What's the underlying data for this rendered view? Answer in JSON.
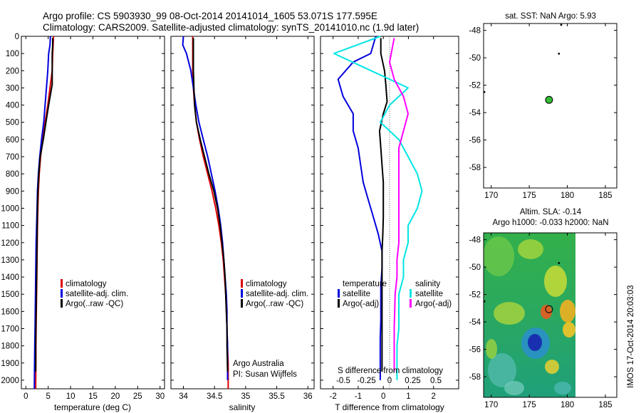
{
  "figure": {
    "title_line1": "Argo profile: CS 5903930_99 08-Oct-2014 20141014_1605 53.071S 177.595E",
    "title_line2": "Climatology: CARS2009. Satellite-adjusted climatology: synTS_20141010.nc (1.9d later)",
    "credits_line1": "Argo Australia",
    "credits_line2": "PI: Susan Wijffels",
    "vertical_stamp": "IMOS 17-Oct-2014 20:03:03"
  },
  "colors": {
    "climatology": "#dd0000",
    "satellite": "#0000dd",
    "argo": "#000000",
    "sst_satellite": "#00e5e5",
    "sal_satellite": "#ff00ff",
    "float_marker": "#33bb33"
  },
  "chart_data": [
    {
      "id": "temperature",
      "type": "line",
      "xlabel": "temperature (deg C)",
      "ylabel": "",
      "xlim": [
        -1,
        31
      ],
      "ylim": [
        2050,
        0
      ],
      "xticks": [
        0,
        5,
        10,
        15,
        20,
        25,
        30
      ],
      "yticks": [
        0,
        100,
        200,
        300,
        400,
        500,
        600,
        700,
        800,
        900,
        1000,
        1100,
        1200,
        1300,
        1400,
        1500,
        1600,
        1700,
        1800,
        1900,
        2000
      ],
      "legend": [
        "climatology",
        "satellite-adj. clim.",
        "Argo(..raw -QC)"
      ],
      "legend_position": "bottom-right",
      "series": [
        {
          "name": "climatology",
          "color_key": "climatology",
          "x": [
            6.2,
            6.1,
            6.0,
            5.9,
            5.4,
            4.9,
            4.3,
            3.8,
            3.3,
            3.0,
            2.8,
            2.7,
            2.6,
            2.55,
            2.5,
            2.45,
            2.4,
            2.35,
            2.3,
            2.25,
            2.25,
            2.2
          ],
          "y": [
            0,
            50,
            100,
            200,
            300,
            400,
            500,
            600,
            700,
            800,
            900,
            1000,
            1100,
            1200,
            1300,
            1400,
            1500,
            1600,
            1700,
            1800,
            1900,
            2050
          ]
        },
        {
          "name": "satellite-adj. clim.",
          "color_key": "satellite",
          "x": [
            5.5,
            5.4,
            5.1,
            4.9,
            4.6,
            4.3,
            4.0,
            3.5,
            3.1,
            2.8,
            2.6,
            2.5,
            2.4,
            2.3,
            2.25,
            2.2,
            2.15,
            2.1,
            2.05,
            2.0,
            1.95,
            1.9
          ],
          "y": [
            0,
            50,
            100,
            200,
            300,
            400,
            500,
            600,
            700,
            800,
            900,
            1000,
            1100,
            1200,
            1300,
            1400,
            1500,
            1600,
            1700,
            1800,
            1900,
            2050
          ]
        },
        {
          "name": "Argo(..raw -QC)",
          "color_key": "argo",
          "x": [
            6.0,
            6.0,
            5.9,
            5.9,
            5.9,
            5.1,
            4.5,
            3.9,
            3.2,
            2.9,
            2.7,
            2.6,
            2.55,
            2.5,
            2.45,
            2.4,
            2.35,
            2.3,
            2.25,
            2.2,
            2.2
          ],
          "y": [
            10,
            50,
            100,
            200,
            280,
            400,
            500,
            600,
            700,
            800,
            900,
            1000,
            1100,
            1200,
            1300,
            1400,
            1500,
            1600,
            1700,
            1800,
            1950
          ]
        }
      ]
    },
    {
      "id": "salinity",
      "type": "line",
      "xlabel": "salinity",
      "ylabel": "",
      "xlim": [
        33.8,
        36.1
      ],
      "ylim": [
        2050,
        0
      ],
      "xticks": [
        34,
        34.5,
        35,
        35.5,
        36
      ],
      "xtick_labels": [
        "34",
        "34.5",
        "35",
        "35.5",
        "36"
      ],
      "legend": [
        "climatology",
        "satellite-adj. clim.",
        "Argo(..raw -QC)"
      ],
      "legend_position": "bottom-right",
      "series": [
        {
          "name": "climatology",
          "color_key": "climatology",
          "x": [
            34.15,
            34.15,
            34.15,
            34.16,
            34.18,
            34.21,
            34.26,
            34.32,
            34.39,
            34.46,
            34.52,
            34.57,
            34.61,
            34.64,
            34.66,
            34.68,
            34.69,
            34.7,
            34.71,
            34.72,
            34.72
          ],
          "y": [
            0,
            100,
            200,
            300,
            400,
            500,
            600,
            700,
            800,
            900,
            1000,
            1100,
            1200,
            1300,
            1400,
            1500,
            1600,
            1700,
            1800,
            1900,
            2050
          ]
        },
        {
          "name": "satellite-adj. clim.",
          "color_key": "satellite",
          "x": [
            34.0,
            33.99,
            34.05,
            34.12,
            34.16,
            34.2,
            34.25,
            34.32,
            34.39,
            34.45,
            34.51,
            34.56,
            34.6,
            34.63,
            34.65,
            34.67,
            34.69,
            34.7,
            34.7,
            34.71,
            34.71
          ],
          "y": [
            0,
            50,
            100,
            200,
            300,
            400,
            500,
            600,
            700,
            800,
            900,
            1000,
            1100,
            1200,
            1300,
            1400,
            1500,
            1600,
            1700,
            1800,
            2000
          ]
        },
        {
          "name": "Argo(..raw -QC)",
          "color_key": "argo",
          "x": [
            34.16,
            34.16,
            34.16,
            34.17,
            34.18,
            34.21,
            34.27,
            34.34,
            34.41,
            34.49,
            34.55,
            34.59,
            34.62,
            34.65,
            34.67,
            34.68,
            34.69,
            34.7,
            34.7,
            34.71
          ],
          "y": [
            10,
            100,
            200,
            300,
            400,
            500,
            600,
            700,
            800,
            900,
            1000,
            1100,
            1200,
            1300,
            1400,
            1500,
            1600,
            1700,
            1800,
            1950
          ]
        }
      ]
    },
    {
      "id": "differences",
      "type": "line",
      "xlabel": "T difference from climatology",
      "xlabel_top": "S difference from climatology",
      "ylabel": "",
      "xlim": [
        -2.5,
        3.0
      ],
      "ylim": [
        2050,
        0
      ],
      "xticks": [
        -2,
        -1,
        0,
        1,
        2
      ],
      "xticks_salinity": [
        -0.5,
        -0.25,
        0,
        0.25,
        0.5
      ],
      "xticks_salinity_labels": [
        "-0.5",
        "-0.25",
        "0",
        "0.25",
        "0.5"
      ],
      "legend_temperature_title": "temperature",
      "legend_salinity_title": "salinity",
      "legend_temperature": [
        "satellite",
        "Argo(-adj)"
      ],
      "legend_salinity": [
        "satellite",
        "Argo(-adj)"
      ],
      "legend_position": "bottom",
      "series": [
        {
          "name": "satellite",
          "color_key": "satellite",
          "group": "temperature",
          "x": [
            -0.3,
            -0.5,
            -1.2,
            -1.8,
            -1.6,
            -1.2,
            -1.2,
            -1.0,
            -0.9,
            -0.8,
            -0.6,
            -0.4,
            -0.2,
            -0.05,
            -0.05,
            -0.1,
            -0.1,
            -0.1,
            -0.12,
            -0.12,
            -0.12
          ],
          "y": [
            0,
            100,
            150,
            250,
            350,
            450,
            550,
            650,
            750,
            850,
            950,
            1050,
            1150,
            1250,
            1350,
            1450,
            1550,
            1650,
            1750,
            1850,
            2000
          ]
        },
        {
          "name": "Argo(-adj)",
          "color_key": "argo",
          "group": "temperature",
          "x": [
            -0.1,
            -0.1,
            0.05,
            0.1,
            0.15,
            0.0,
            -0.15,
            -0.1,
            -0.05,
            0.0,
            0.0,
            0.0,
            -0.02,
            -0.05,
            -0.05,
            -0.05,
            -0.05,
            -0.05,
            -0.05,
            -0.05
          ],
          "y": [
            10,
            100,
            200,
            280,
            380,
            450,
            550,
            650,
            750,
            850,
            950,
            1050,
            1150,
            1250,
            1350,
            1450,
            1550,
            1650,
            1750,
            1950
          ]
        },
        {
          "name": "satellite",
          "color_key": "sst_satellite",
          "group": "salinity",
          "x": [
            -0.1,
            -0.6,
            -0.2,
            0.2,
            0.0,
            -0.1,
            0.1,
            0.2,
            0.3,
            0.35,
            0.3,
            0.2,
            0.2,
            0.15,
            0.15,
            0.1,
            0.1,
            0.1,
            0.08,
            0.08
          ],
          "y": [
            0,
            100,
            200,
            300,
            400,
            500,
            600,
            700,
            800,
            900,
            1000,
            1100,
            1200,
            1300,
            1400,
            1500,
            1600,
            1700,
            1800,
            2000
          ]
        },
        {
          "name": "Argo(-adj)",
          "color_key": "sal_satellite",
          "group": "salinity",
          "x": [
            0.05,
            0.0,
            0.05,
            0.15,
            0.2,
            0.15,
            0.1,
            0.1,
            0.1,
            0.1,
            0.1,
            0.1,
            0.08,
            0.08,
            0.06,
            0.05,
            0.05
          ],
          "y": [
            10,
            150,
            250,
            350,
            450,
            550,
            650,
            750,
            850,
            1000,
            1100,
            1200,
            1300,
            1400,
            1500,
            1700,
            1950
          ]
        }
      ]
    },
    {
      "id": "sst_map",
      "type": "scatter",
      "title": "sat. SST: NaN Argo: 5.93",
      "xlim": [
        169,
        186.5
      ],
      "ylim": [
        -59.5,
        -47.5
      ],
      "xticks": [
        170,
        175,
        180,
        185
      ],
      "yticks": [
        -48,
        -50,
        -52,
        -54,
        -56,
        -58
      ],
      "points": [
        {
          "x": 177.6,
          "y": -53.07,
          "kind": "float"
        },
        {
          "x": 178.9,
          "y": -49.7,
          "kind": "dot"
        },
        {
          "x": 169.1,
          "y": -52.5,
          "kind": "dot"
        },
        {
          "x": 179.2,
          "y": -47.6,
          "kind": "dot"
        }
      ]
    },
    {
      "id": "sla_map",
      "type": "heatmap",
      "title_line1": "Altim. SLA: -0.14",
      "title_line2": "Argo h1000: -0.033 h2000: NaN",
      "xlim": [
        169,
        186.5
      ],
      "ylim": [
        -59.5,
        -47.5
      ],
      "xticks": [
        170,
        175,
        180,
        185
      ],
      "yticks": [
        -48,
        -50,
        -52,
        -54,
        -56,
        -58
      ],
      "field_extent": {
        "x": [
          169,
          180
        ],
        "y": [
          -59.5,
          -47.5
        ]
      },
      "points": [
        {
          "x": 177.6,
          "y": -53.07,
          "kind": "float-open"
        },
        {
          "x": 178.9,
          "y": -49.7,
          "kind": "dot"
        },
        {
          "x": 169.1,
          "y": -52.5,
          "kind": "dot"
        }
      ]
    }
  ]
}
